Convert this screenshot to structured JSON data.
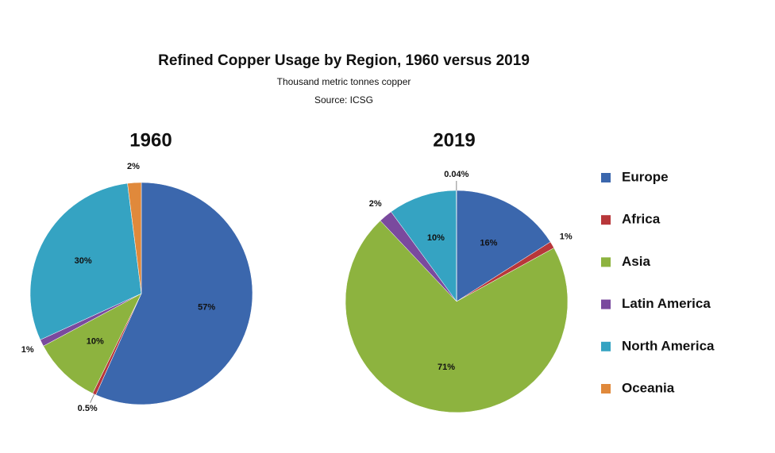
{
  "title": "Refined Copper Usage by Region, 1960 versus 2019",
  "subtitle": "Thousand metric tonnes copper",
  "source": "Source: ICSG",
  "legend": {
    "position": "right",
    "categories": [
      "Europe",
      "Africa",
      "Asia",
      "Latin America",
      "North America",
      "Oceania"
    ],
    "colors": [
      "#3b67ad",
      "#b8373a",
      "#8db33f",
      "#7a4a9e",
      "#35a3c2",
      "#e0893b"
    ]
  },
  "chart_data": [
    {
      "type": "pie",
      "title": "1960",
      "values": [
        57,
        0.5,
        10,
        1,
        30,
        2
      ],
      "value_labels": [
        "57%",
        "0.5%",
        "10%",
        "1%",
        "30%",
        "2%"
      ]
    },
    {
      "type": "pie",
      "title": "2019",
      "values": [
        16,
        1,
        71,
        2,
        10,
        0.04
      ],
      "value_labels": [
        "16%",
        "1%",
        "71%",
        "2%",
        "10%",
        "0.04%"
      ]
    }
  ]
}
